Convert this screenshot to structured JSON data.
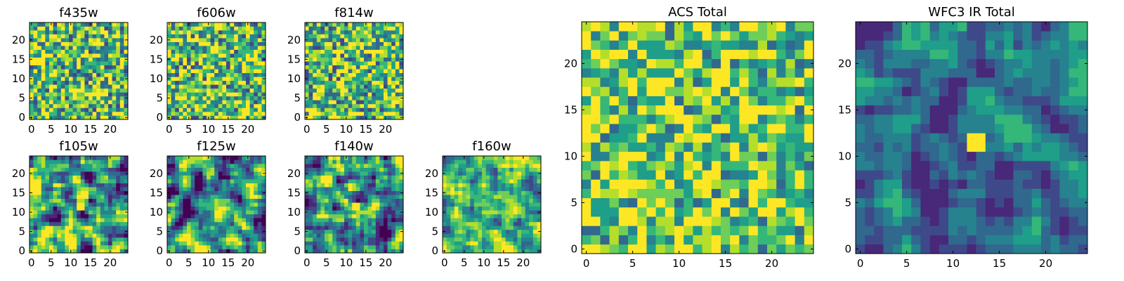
{
  "chart_data": {
    "type": "heatmap",
    "colormap": "viridis",
    "grid_size": [
      25,
      25
    ],
    "seed_note": "",
    "panels": [
      {
        "title": "f435w",
        "x_ticks": [
          "0",
          "5",
          "10",
          "15",
          "20"
        ],
        "y_ticks": [
          "0",
          "5",
          "10",
          "15",
          "20"
        ],
        "xlim": [
          0,
          24
        ],
        "ylim": [
          0,
          24
        ],
        "texture": "noise"
      },
      {
        "title": "f606w",
        "x_ticks": [
          "0",
          "5",
          "10",
          "15",
          "20"
        ],
        "y_ticks": [
          "0",
          "5",
          "10",
          "15",
          "20"
        ],
        "xlim": [
          0,
          24
        ],
        "ylim": [
          0,
          24
        ],
        "texture": "noise"
      },
      {
        "title": "f814w",
        "x_ticks": [
          "0",
          "5",
          "10",
          "15",
          "20"
        ],
        "y_ticks": [
          "0",
          "5",
          "10",
          "15",
          "20"
        ],
        "xlim": [
          0,
          24
        ],
        "ylim": [
          0,
          24
        ],
        "texture": "noise"
      },
      {
        "title": "f105w",
        "x_ticks": [
          "0",
          "5",
          "10",
          "15",
          "20"
        ],
        "y_ticks": [
          "0",
          "5",
          "10",
          "15",
          "20"
        ],
        "xlim": [
          0,
          24
        ],
        "ylim": [
          0,
          24
        ],
        "texture": "smooth",
        "bright_spot": [
          12,
          11
        ]
      },
      {
        "title": "f125w",
        "x_ticks": [
          "0",
          "5",
          "10",
          "15",
          "20"
        ],
        "y_ticks": [
          "0",
          "5",
          "10",
          "15",
          "20"
        ],
        "xlim": [
          0,
          24
        ],
        "ylim": [
          0,
          24
        ],
        "texture": "smooth"
      },
      {
        "title": "f140w",
        "x_ticks": [
          "0",
          "5",
          "10",
          "15",
          "20"
        ],
        "y_ticks": [
          "0",
          "5",
          "10",
          "15",
          "20"
        ],
        "xlim": [
          0,
          24
        ],
        "ylim": [
          0,
          24
        ],
        "texture": "smooth",
        "bright_spot": [
          12,
          11
        ]
      },
      {
        "title": "f160w",
        "x_ticks": [
          "0",
          "5",
          "10",
          "15",
          "20"
        ],
        "y_ticks": [
          "0",
          "5",
          "10",
          "15",
          "20"
        ],
        "xlim": [
          0,
          24
        ],
        "ylim": [
          0,
          24
        ],
        "texture": "smooth_light"
      },
      {
        "title": "ACS Total",
        "x_ticks": [
          "0",
          "5",
          "10",
          "15",
          "20"
        ],
        "y_ticks": [
          "0",
          "5",
          "10",
          "15",
          "20"
        ],
        "xlim": [
          0,
          24
        ],
        "ylim": [
          0,
          24
        ],
        "texture": "bright_noise"
      },
      {
        "title": "WFC3 IR Total",
        "x_ticks": [
          "0",
          "5",
          "10",
          "15",
          "20"
        ],
        "y_ticks": [
          "0",
          "5",
          "10",
          "15",
          "20"
        ],
        "xlim": [
          0,
          24
        ],
        "ylim": [
          0,
          24
        ],
        "texture": "dark_smooth",
        "bright_spot": [
          12,
          11
        ]
      }
    ]
  },
  "colors": {
    "viridis": [
      "#440154",
      "#482878",
      "#3e4989",
      "#31688e",
      "#26828e",
      "#1f9e89",
      "#35b779",
      "#6ece58",
      "#b5de2b",
      "#fde725"
    ]
  }
}
